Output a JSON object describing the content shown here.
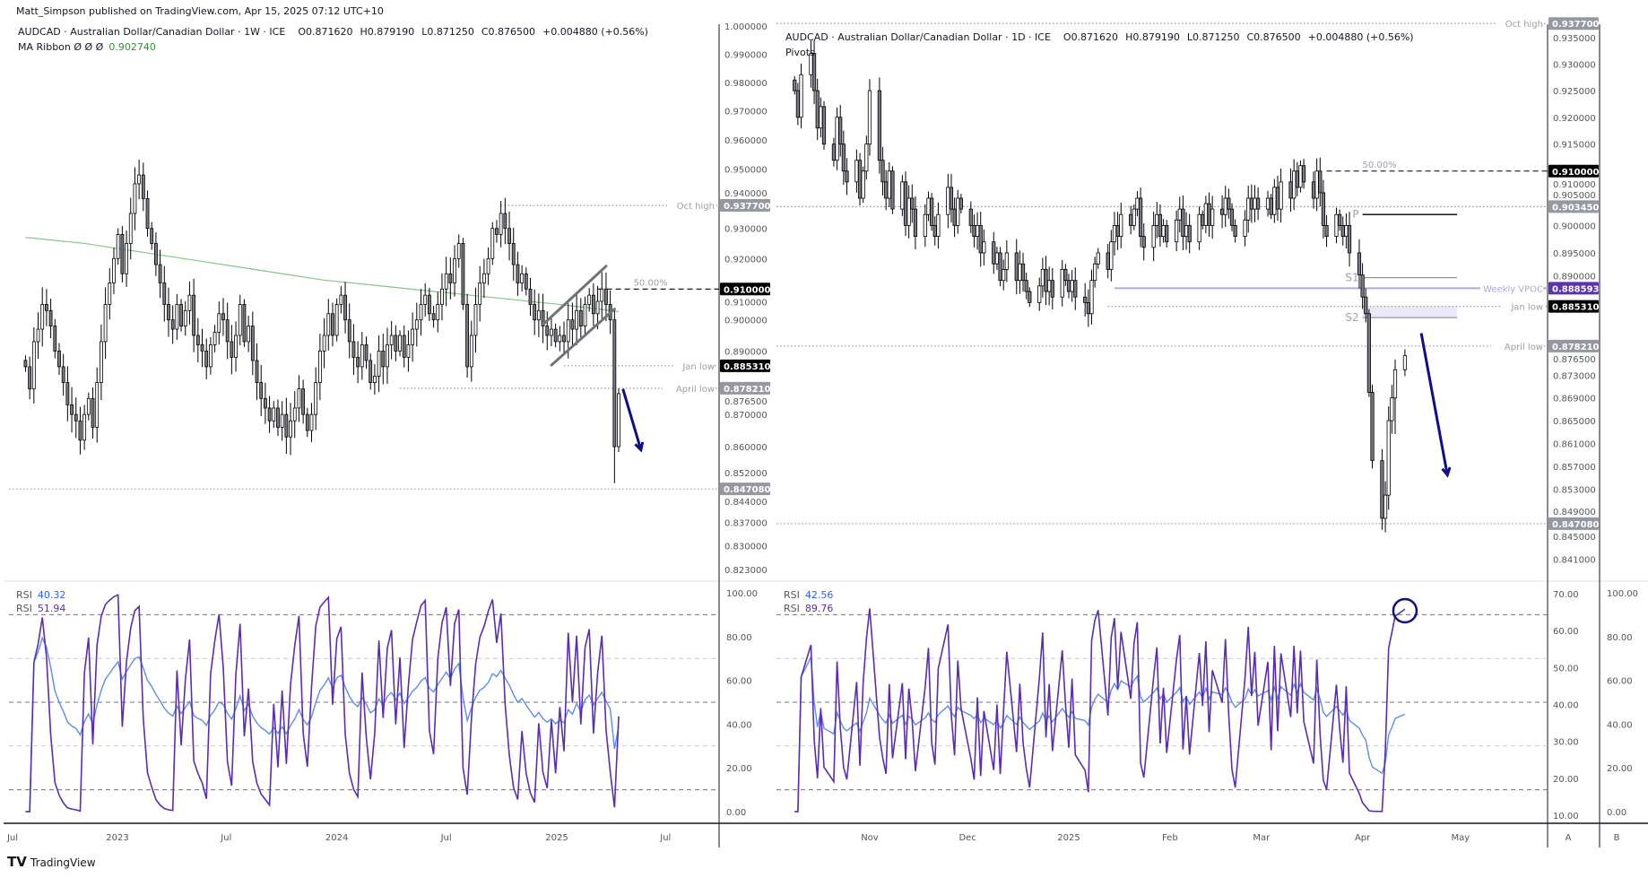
{
  "header": {
    "published": "Matt_Simpson published on TradingView.com, Apr 15, 2025 07:12 UTC+10"
  },
  "footer": {
    "logo_text": "TradingView"
  },
  "buttons": {
    "a": "A",
    "b": "B"
  },
  "colors": {
    "up_fill": "#ffffff",
    "down_fill": "#787b86",
    "candle_border": "#000000",
    "ma_ribbon": "#81c784",
    "rsi_slow": "#5b8def",
    "rsi_fast": "#5a2db0",
    "arrow": "#0d0f8a",
    "vpoc": "#b7a6e6",
    "vpoc_tag": "#5a35b0",
    "tag_gray": "#9598a1",
    "tag_black": "#000000",
    "legend_green": "#388e3c"
  },
  "chart_data": [
    {
      "type": "candlestick",
      "title": "AUDCAD · Australian Dollar/Canadian Dollar · 1W · ICE",
      "ohlc": {
        "open": "O0.871620",
        "high": "H0.879190",
        "low": "L0.871250",
        "close": "C0.876500",
        "change": "+0.004880 (+0.56%)"
      },
      "indicator": {
        "name": "MA Ribbon  Ø  Ø  Ø",
        "value": "0.902740"
      },
      "yscale": "log",
      "ylim": [
        0.82,
        1.0
      ],
      "interval": "1W",
      "last_date": "2025-04-14",
      "yticks": [
        "1.000000",
        "0.990000",
        "0.980000",
        "0.970000",
        "0.960000",
        "0.950000",
        "0.940000",
        "0.930000",
        "0.920000",
        "0.910000",
        "0.900000",
        "0.890000",
        "0.876500",
        "0.870000",
        "0.860000",
        "0.852000",
        "0.844000",
        "0.837000",
        "0.830000",
        "0.823000"
      ],
      "xticks": [
        {
          "label": "Jul",
          "date": "2022-07-01"
        },
        {
          "label": "2023",
          "date": "2023-01-01"
        },
        {
          "label": "Jul",
          "date": "2023-07-01"
        },
        {
          "label": "2024",
          "date": "2024-01-01"
        },
        {
          "label": "Jul",
          "date": "2024-07-01"
        },
        {
          "label": "2025",
          "date": "2025-01-01"
        },
        {
          "label": "Jul",
          "date": "2025-07-01"
        }
      ],
      "closes": [
        0.885,
        0.878,
        0.893,
        0.897,
        0.905,
        0.903,
        0.898,
        0.89,
        0.885,
        0.88,
        0.873,
        0.87,
        0.868,
        0.862,
        0.87,
        0.875,
        0.866,
        0.88,
        0.893,
        0.905,
        0.912,
        0.92,
        0.928,
        0.915,
        0.925,
        0.935,
        0.945,
        0.948,
        0.94,
        0.93,
        0.925,
        0.918,
        0.912,
        0.905,
        0.9,
        0.897,
        0.905,
        0.898,
        0.903,
        0.908,
        0.895,
        0.892,
        0.89,
        0.885,
        0.892,
        0.896,
        0.902,
        0.9,
        0.893,
        0.888,
        0.895,
        0.905,
        0.893,
        0.898,
        0.887,
        0.88,
        0.875,
        0.872,
        0.868,
        0.872,
        0.866,
        0.87,
        0.863,
        0.868,
        0.872,
        0.878,
        0.87,
        0.865,
        0.87,
        0.88,
        0.89,
        0.895,
        0.902,
        0.895,
        0.905,
        0.908,
        0.9,
        0.893,
        0.888,
        0.885,
        0.892,
        0.887,
        0.88,
        0.882,
        0.89,
        0.885,
        0.892,
        0.895,
        0.89,
        0.895,
        0.888,
        0.892,
        0.897,
        0.9,
        0.905,
        0.908,
        0.902,
        0.9,
        0.905,
        0.91,
        0.915,
        0.912,
        0.92,
        0.925,
        0.905,
        0.885,
        0.895,
        0.905,
        0.912,
        0.915,
        0.92,
        0.93,
        0.928,
        0.935,
        0.93,
        0.925,
        0.918,
        0.912,
        0.915,
        0.91,
        0.905,
        0.9,
        0.903,
        0.898,
        0.895,
        0.897,
        0.893,
        0.895,
        0.893,
        0.9,
        0.897,
        0.903,
        0.898,
        0.905,
        0.908,
        0.902,
        0.906,
        0.91,
        0.905,
        0.9,
        0.86,
        0.8765
      ],
      "ma_ribbon": [
        0.927,
        0.925,
        0.922,
        0.919,
        0.916,
        0.913,
        0.911,
        0.909,
        0.907,
        0.905,
        0.9027
      ],
      "levels": [
        {
          "label": "Oct high",
          "value": 0.9377,
          "style": "dotted",
          "from": "2024-09-30",
          "label_pos": "end",
          "tag": "0.937700",
          "tag_color": "#9598a1"
        },
        {
          "label": "50.00%",
          "value": 0.91,
          "style": "dashed",
          "from": "2025-03-10",
          "label_pos": "start",
          "tag": "0.910000",
          "tag_color": "#000000"
        },
        {
          "label": "Jan low",
          "value": 0.88531,
          "style": "dotted",
          "from": "2025-01-13",
          "label_pos": "end",
          "tag": "0.885310",
          "tag_color": "#000000"
        },
        {
          "label": "April low",
          "value": 0.87821,
          "style": "dotted",
          "from": "2024-04-15",
          "label_pos": "end",
          "tag": "0.878210",
          "tag_color": "#9598a1"
        },
        {
          "label": "",
          "value": 0.84708,
          "style": "dotted",
          "from": "2022-06-20",
          "label_pos": "end",
          "tag": "0.847080",
          "tag_color": "#9598a1"
        }
      ],
      "channel": [
        {
          "from": {
            "date": "2024-12-09",
            "value": 0.8985
          },
          "to": {
            "date": "2025-03-24",
            "value": 0.9175
          }
        },
        {
          "from": {
            "date": "2024-12-23",
            "value": 0.8855
          },
          "to": {
            "date": "2025-04-07",
            "value": 0.9035
          }
        }
      ],
      "arrow": {
        "from": {
          "date": "2025-04-21",
          "value": 0.878
        },
        "to": {
          "date": "2025-05-21",
          "value": 0.859
        }
      },
      "rsi": {
        "legend": [
          {
            "name": "RSI",
            "value": "40.32",
            "color": "#2962ff"
          },
          {
            "name": "RSI",
            "value": "51.94",
            "color": "#5a2db0"
          }
        ],
        "periods": [
          14,
          2
        ],
        "yticks": [
          "100.00",
          "80.00",
          "60.00",
          "40.00",
          "20.00",
          "0.00"
        ],
        "levels": [
          90,
          70,
          50,
          30,
          10
        ]
      }
    },
    {
      "type": "candlestick",
      "title": "AUDCAD · Australian Dollar/Canadian Dollar · 1D · ICE",
      "ohlc": {
        "open": "O0.871620",
        "high": "H0.879190",
        "low": "L0.871250",
        "close": "C0.876500",
        "change": "+0.004880 (+0.56%)"
      },
      "indicator": {
        "name": "Pivots",
        "value": ""
      },
      "yscale": "log",
      "interval": "1D",
      "last_date": "2025-04-14",
      "yticks": [
        "0.935000",
        "0.930000",
        "0.925000",
        "0.920000",
        "0.915000",
        "0.910000",
        "0.905000",
        "0.900000",
        "0.895000",
        "0.890000",
        "0.876500",
        "0.873000",
        "0.869000",
        "0.865000",
        "0.861000",
        "0.857000",
        "0.853000",
        "0.849000",
        "0.845000",
        "0.841000"
      ],
      "xticks": [
        {
          "label": "Nov",
          "date": "2024-11-01"
        },
        {
          "label": "Dec",
          "date": "2024-12-01"
        },
        {
          "label": "2025",
          "date": "2025-01-01"
        },
        {
          "label": "Feb",
          "date": "2025-02-01"
        },
        {
          "label": "Mar",
          "date": "2025-03-01"
        },
        {
          "label": "Apr",
          "date": "2025-04-01"
        },
        {
          "label": "May",
          "date": "2025-05-01"
        }
      ],
      "closes": [
        0.925,
        0.92,
        0.928,
        0.932,
        0.925,
        0.918,
        0.922,
        0.915,
        0.912,
        0.92,
        0.915,
        0.91,
        0.908,
        0.912,
        0.905,
        0.91,
        0.915,
        0.925,
        0.912,
        0.908,
        0.905,
        0.91,
        0.903,
        0.908,
        0.9,
        0.905,
        0.903,
        0.898,
        0.902,
        0.905,
        0.9,
        0.898,
        0.902,
        0.907,
        0.903,
        0.9,
        0.905,
        0.903,
        0.9,
        0.898,
        0.9,
        0.895,
        0.897,
        0.893,
        0.895,
        0.89,
        0.892,
        0.895,
        0.89,
        0.893,
        0.89,
        0.888,
        0.886,
        0.889,
        0.892,
        0.888,
        0.89,
        0.887,
        0.892,
        0.89,
        0.888,
        0.89,
        0.887,
        0.886,
        0.884,
        0.89,
        0.893,
        0.895,
        0.892,
        0.897,
        0.9,
        0.898,
        0.902,
        0.9,
        0.903,
        0.905,
        0.898,
        0.896,
        0.9,
        0.902,
        0.898,
        0.9,
        0.897,
        0.901,
        0.903,
        0.898,
        0.9,
        0.897,
        0.902,
        0.9,
        0.904,
        0.9,
        0.903,
        0.902,
        0.905,
        0.903,
        0.9,
        0.898,
        0.901,
        0.905,
        0.903,
        0.905,
        0.903,
        0.905,
        0.902,
        0.907,
        0.903,
        0.908,
        0.905,
        0.91,
        0.907,
        0.911,
        0.908,
        0.905,
        0.91,
        0.906,
        0.9,
        0.898,
        0.902,
        0.9,
        0.898,
        0.9,
        0.895,
        0.891,
        0.887,
        0.884,
        0.87,
        0.858,
        0.848,
        0.852,
        0.865,
        0.869,
        0.874,
        0.8765
      ],
      "levels": [
        {
          "label": "Oct high",
          "value": 0.9377,
          "style": "dotted",
          "from": "2024-10-01",
          "label_pos": "end",
          "tag": "0.937700",
          "tag_color": "#9598a1"
        },
        {
          "label": "50.00%",
          "value": 0.91,
          "style": "dashed",
          "from": "2025-03-21",
          "label_pos": "start",
          "tag": "0.910000",
          "tag_color": "#000000"
        },
        {
          "label": "",
          "value": 0.90345,
          "style": "dotted",
          "from": "2024-10-01",
          "label_pos": "end",
          "tag": "0.903450",
          "tag_color": "#9598a1"
        },
        {
          "label": "Weekly VPOC",
          "value": 0.888593,
          "style": "solid",
          "from": "2025-01-15",
          "label_pos": "end",
          "tag": "0.888593",
          "tag_color": "#5a35b0"
        },
        {
          "label": "Jan low",
          "value": 0.88531,
          "style": "dotted",
          "from": "2025-01-13",
          "label_pos": "end",
          "tag": "0.885310",
          "tag_color": "#000000"
        },
        {
          "label": "April low",
          "value": 0.87821,
          "style": "dotted",
          "from": "2024-10-01",
          "label_pos": "end",
          "tag": "0.878210",
          "tag_color": "#9598a1"
        },
        {
          "label": "",
          "value": 0.84708,
          "style": "dotted",
          "from": "2024-10-01",
          "label_pos": "end",
          "tag": "0.847080",
          "tag_color": "#9598a1"
        }
      ],
      "pivots": {
        "from": "2025-04-01",
        "to": "2025-04-30",
        "levels": [
          {
            "label": "P",
            "value": 0.902,
            "color": "#000000"
          },
          {
            "label": "S1",
            "value": 0.8905,
            "color": "#9598a1"
          },
          {
            "label": "S2",
            "value": 0.8833,
            "color": "#9598a1"
          }
        ],
        "zone": [
          0.8853,
          0.8833
        ]
      },
      "arrow": {
        "from": {
          "date": "2025-04-19",
          "value": 0.8805
        },
        "to": {
          "date": "2025-04-27",
          "value": 0.8555
        }
      },
      "rsi": {
        "legend": [
          {
            "name": "RSI",
            "value": "42.56",
            "color": "#2962ff"
          },
          {
            "name": "RSI",
            "value": "89.76",
            "color": "#5a2db0"
          }
        ],
        "periods": [
          14,
          2
        ],
        "yticks": [
          "100.00",
          "80.00",
          "60.00",
          "40.00",
          "20.00",
          "0.00"
        ],
        "yticks_secondary": [
          "70.00",
          "60.00",
          "50.00",
          "40.00",
          "30.00",
          "20.00",
          "10.00"
        ],
        "levels": [
          90,
          70,
          50,
          30,
          10
        ],
        "highlight": {
          "date": "2025-04-14",
          "value": 89.76
        }
      }
    }
  ]
}
